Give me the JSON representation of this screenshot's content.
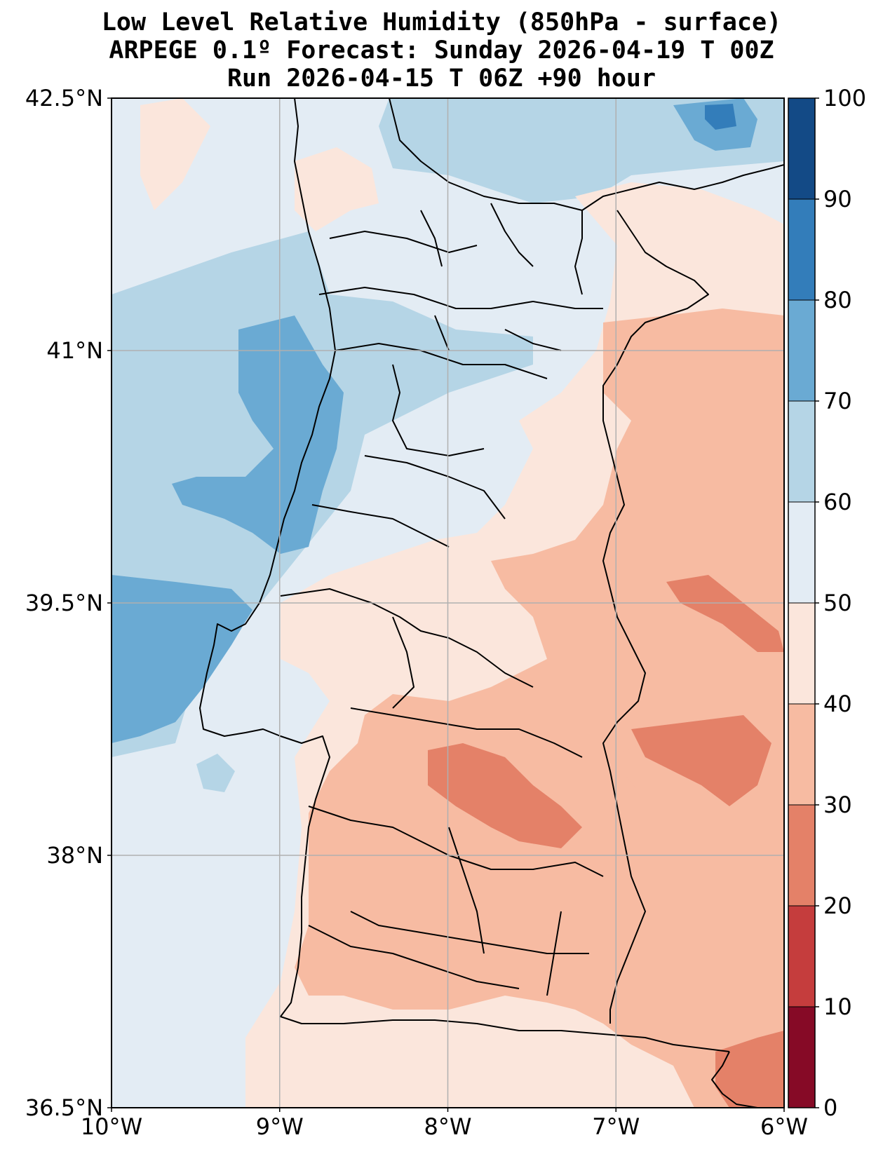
{
  "title": {
    "line1": "Low Level Relative Humidity (850hPa - surface)",
    "line2": "ARPEGE 0.1º Forecast: Sunday 2026-04-19 T 00Z",
    "line3": "Run 2026-04-15 T 06Z +90 hour"
  },
  "map": {
    "lon_range": [
      -10,
      -6
    ],
    "lat_range": [
      36.5,
      42.5
    ],
    "lon_ticks": [
      -10,
      -9,
      -8,
      -7,
      -6
    ],
    "lat_ticks": [
      36.5,
      38,
      39.5,
      41,
      42.5
    ],
    "lon_labels": [
      "10°W",
      "9°W",
      "8°W",
      "7°W",
      "6°W"
    ],
    "lat_labels": [
      "36.5°N",
      "38°N",
      "39.5°N",
      "41°N",
      "42.5°N"
    ],
    "gridlines": true,
    "variable": "Relative Humidity (%)"
  },
  "colorbar": {
    "bounds": [
      0,
      10,
      20,
      30,
      40,
      50,
      60,
      70,
      80,
      90,
      100
    ],
    "labels": [
      "0",
      "10",
      "20",
      "30",
      "40",
      "50",
      "60",
      "70",
      "80",
      "90",
      "100"
    ],
    "colors": [
      "#860a26",
      "#c53d3d",
      "#e48168",
      "#f7bba2",
      "#fbe6dc",
      "#e3ecf4",
      "#b5d5e6",
      "#6aaad3",
      "#337dba",
      "#134a86"
    ]
  }
}
